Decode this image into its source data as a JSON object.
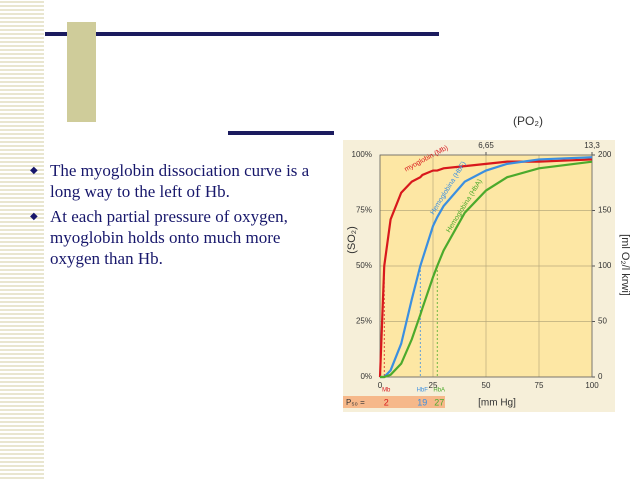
{
  "slide": {
    "bullets": [
      "The myoglobin dissociation curve is a long way to the left of Hb.",
      "At each partial pressure of oxygen, myoglobin holds onto much more oxygen than Hb."
    ]
  },
  "chart_data": {
    "type": "line",
    "x_label": "[mm Hg]",
    "x2_label": "(PO₂)",
    "y_label": "(SO₂)",
    "y2_label": "[ml O₂/l krwi]",
    "p50_label": "P₅₀ =",
    "x": [
      0,
      2,
      5,
      10,
      15,
      19,
      20,
      25,
      27,
      30,
      40,
      50,
      60,
      75,
      100
    ],
    "xlim": [
      0,
      100
    ],
    "xticks": [
      0,
      25,
      50,
      75,
      100
    ],
    "x2lim": [
      0,
      13.3
    ],
    "x2ticks": [
      {
        "value": 6.65,
        "label": "6,65"
      },
      {
        "value": 13.3,
        "label": "13,3"
      }
    ],
    "ylim": [
      0,
      100
    ],
    "yticks": [
      {
        "value": 0,
        "label": "0%"
      },
      {
        "value": 25,
        "label": "25%"
      },
      {
        "value": 50,
        "label": "50%"
      },
      {
        "value": 75,
        "label": "75%"
      },
      {
        "value": 100,
        "label": "100%"
      }
    ],
    "y2lim": [
      0,
      200
    ],
    "y2ticks": [
      0,
      50,
      100,
      150,
      200
    ],
    "grid": true,
    "series": [
      {
        "name": "myoglobin (Mb)",
        "abbr": "Mb",
        "color": "#d8181c",
        "p50": 2,
        "values": [
          0,
          50,
          71,
          83,
          88,
          90,
          91,
          93,
          93,
          94,
          95,
          96,
          97,
          97,
          98
        ]
      },
      {
        "name": "Hemoglobina (HbF)",
        "abbr": "HbF",
        "color": "#3b8fe0",
        "p50": 19,
        "values": [
          0,
          0,
          3,
          15,
          35,
          50,
          53,
          68,
          72,
          77,
          88,
          93,
          96,
          98,
          99
        ]
      },
      {
        "name": "Hemoglobina (HbA)",
        "abbr": "HbA",
        "color": "#4caa2c",
        "p50": 27,
        "values": [
          0,
          0,
          1,
          6,
          17,
          28,
          31,
          45,
          50,
          57,
          74,
          84,
          90,
          94,
          97
        ]
      }
    ]
  }
}
